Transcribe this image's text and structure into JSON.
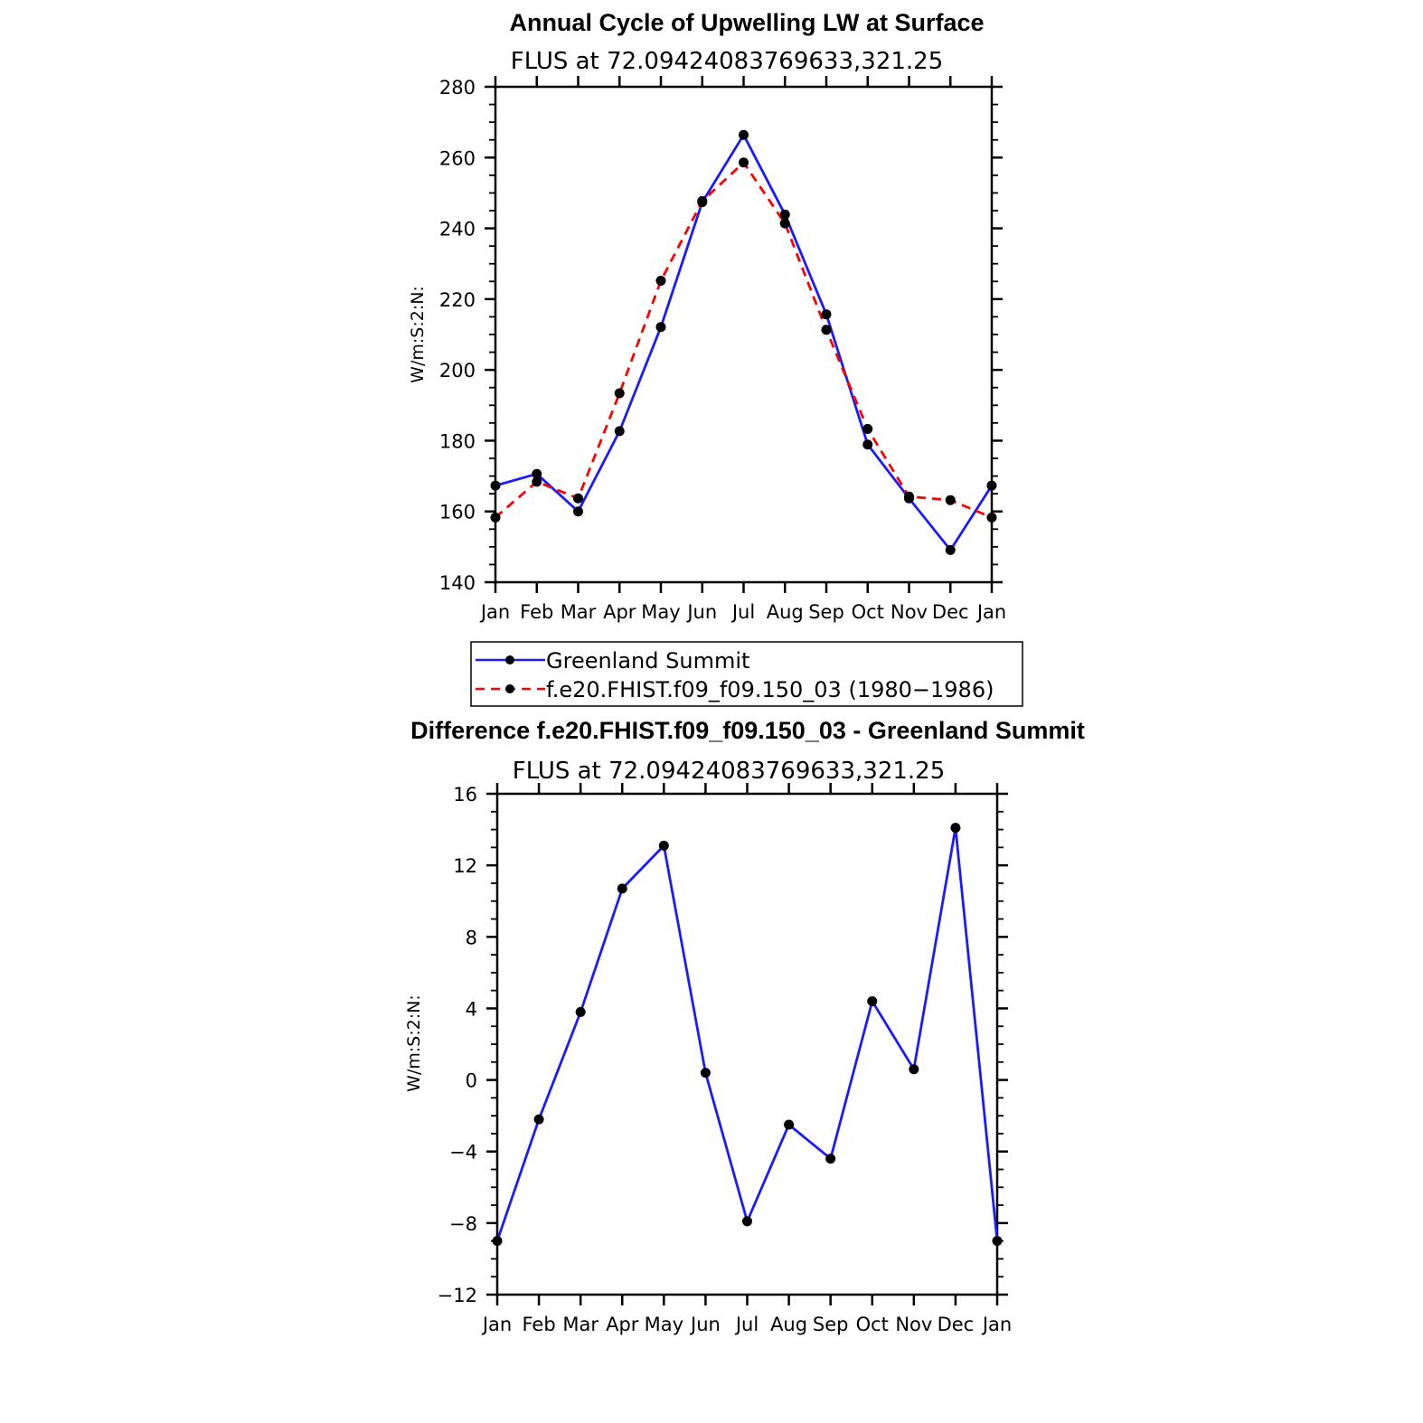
{
  "colors": {
    "series_observed": "#1a1aff",
    "series_model": "#ff0000",
    "marker": "#000000",
    "axis": "#000000"
  },
  "legend": {
    "items": [
      {
        "label": "Greenland Summit",
        "color": "#1a1aff",
        "style": "solid"
      },
      {
        "label": "f.e20.FHIST.f09_f09.150_03 (1980−1986)",
        "color": "#ff0000",
        "style": "dashed"
      }
    ]
  },
  "chart_data": [
    {
      "type": "line",
      "title": "Annual Cycle of Upwelling LW at Surface",
      "subtitle": "FLUS at 72.09424083769633,321.25",
      "xlabel": "",
      "ylabel": "W/m:S:2:N:",
      "ylim": [
        140,
        280
      ],
      "yticks": [
        140,
        160,
        180,
        200,
        220,
        240,
        260,
        280
      ],
      "ytick_labels": [
        "140",
        "160",
        "180",
        "200",
        "220",
        "240",
        "260",
        "280"
      ],
      "categories": [
        "Jan",
        "Feb",
        "Mar",
        "Apr",
        "May",
        "Jun",
        "Jul",
        "Aug",
        "Sep",
        "Oct",
        "Nov",
        "Dec",
        "Jan"
      ],
      "series": [
        {
          "name": "Greenland Summit",
          "values": [
            167.3,
            170.6,
            160.0,
            182.7,
            212.1,
            247.4,
            266.4,
            243.9,
            215.7,
            178.9,
            163.7,
            149.1,
            167.3
          ]
        },
        {
          "name": "f.e20.FHIST.f09_f09.150_03 (1980−1986)",
          "values": [
            158.3,
            168.4,
            163.7,
            193.4,
            225.2,
            247.7,
            258.6,
            241.4,
            211.3,
            183.3,
            164.2,
            163.2,
            158.3
          ]
        }
      ],
      "grid": false,
      "legend": "below"
    },
    {
      "type": "line",
      "title": "Difference f.e20.FHIST.f09_f09.150_03 - Greenland Summit",
      "subtitle": "FLUS at 72.09424083769633,321.25",
      "xlabel": "",
      "ylabel": "W/m:S:2:N:",
      "ylim": [
        -12,
        16
      ],
      "yticks": [
        -12,
        -8,
        -4,
        0,
        4,
        8,
        12,
        16
      ],
      "ytick_labels": [
        "−12",
        "−8",
        "−4",
        "0",
        "4",
        "8",
        "12",
        "16"
      ],
      "categories": [
        "Jan",
        "Feb",
        "Mar",
        "Apr",
        "May",
        "Jun",
        "Jul",
        "Aug",
        "Sep",
        "Oct",
        "Nov",
        "Dec",
        "Jan"
      ],
      "series": [
        {
          "values": [
            -9.0,
            -2.2,
            3.8,
            10.7,
            13.1,
            0.4,
            -7.9,
            -2.5,
            -4.4,
            4.4,
            0.6,
            14.1,
            -9.0
          ]
        }
      ],
      "grid": false
    }
  ]
}
